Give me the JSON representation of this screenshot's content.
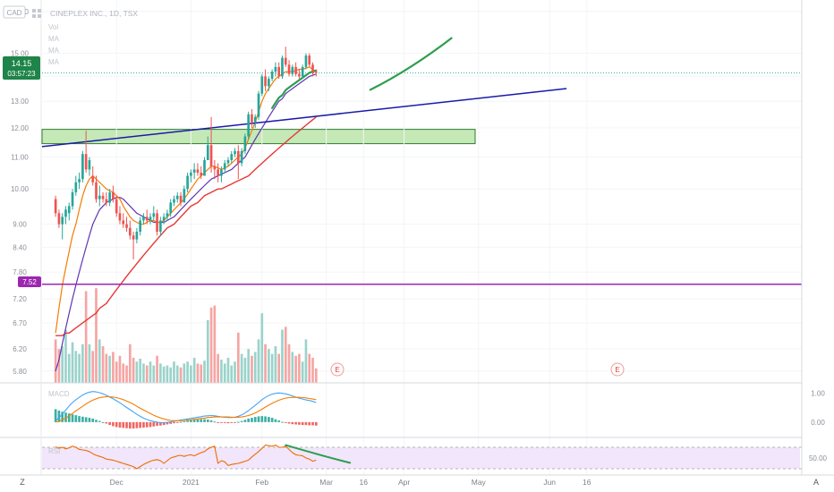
{
  "header": {
    "currency": "CAD",
    "symbol_title": "CINEPLEX INC., 1D, TSX",
    "indicator_labels": [
      "Vol",
      "MA",
      "MA",
      "MA"
    ]
  },
  "last_price": {
    "value": "14.15",
    "countdown": "03:57:23"
  },
  "level_label": "7.52",
  "price_axis_ticks": [
    "17.00",
    "15.00",
    "14.00",
    "13.00",
    "12.00",
    "11.00",
    "10.00",
    "9.00",
    "8.40",
    "7.80",
    "7.20",
    "6.70",
    "6.20",
    "5.80"
  ],
  "macd_axis_ticks": [
    "1.00",
    "0.00"
  ],
  "macd_label": "MACD",
  "rsi_axis_ticks": [
    "50.00"
  ],
  "rsi_label": "RSI",
  "time_axis_labels": [
    "Dec",
    "2021",
    "Feb",
    "Mar",
    "16",
    "Apr",
    "May",
    "Jun",
    "16"
  ],
  "earnings_marker": "E",
  "corner_left": "Z",
  "corner_right": "A",
  "colors": {
    "up": "#26a69a",
    "down": "#ef5350",
    "ma_fast": "#f57c00",
    "ma_mid": "#5e35b1",
    "ma_slow": "#e53935",
    "trend_line": "#1a1aa8",
    "support_line": "#9c27b0",
    "zone_fill": "#c5e8b7",
    "zone_border": "#2e7d32",
    "drawn_arrow": "#2e9e4f",
    "price_badge": "#1e8449",
    "macd_line": "#42a5f5",
    "signal_line": "#f57c00",
    "rsi_line": "#ef6c00",
    "rsi_band": "#f1e6fb"
  },
  "chart_data": {
    "type": "candlestick",
    "title": "CINEPLEX INC., 1D, TSX",
    "y_scale": "log",
    "ylim": [
      5.6,
      17.5
    ],
    "x_range": [
      -4,
      220
    ],
    "x_label_positions": [
      {
        "label": "Dec",
        "index": 18
      },
      {
        "label": "2021",
        "index": 40
      },
      {
        "label": "Feb",
        "index": 61
      },
      {
        "label": "Mar",
        "index": 80
      },
      {
        "label": "16",
        "index": 91
      },
      {
        "label": "Apr",
        "index": 103
      },
      {
        "label": "May",
        "index": 125
      },
      {
        "label": "Jun",
        "index": 146
      },
      {
        "label": "16",
        "index": 157
      }
    ],
    "ohlc": [
      [
        9.7,
        9.8,
        9.2,
        9.3
      ],
      [
        9.3,
        9.4,
        8.9,
        9.0
      ],
      [
        9.0,
        9.3,
        8.6,
        9.2
      ],
      [
        9.2,
        9.5,
        9.0,
        9.4
      ],
      [
        9.3,
        9.6,
        9.1,
        9.5
      ],
      [
        9.5,
        10.0,
        9.4,
        9.9
      ],
      [
        9.9,
        10.4,
        9.8,
        10.2
      ],
      [
        10.2,
        10.5,
        10.0,
        10.3
      ],
      [
        10.3,
        11.2,
        10.2,
        11.1
      ],
      [
        11.1,
        11.9,
        10.5,
        10.6
      ],
      [
        10.6,
        11.0,
        10.4,
        10.9
      ],
      [
        10.4,
        10.7,
        10.1,
        10.2
      ],
      [
        10.2,
        10.4,
        9.6,
        9.7
      ],
      [
        9.7,
        10.1,
        9.5,
        9.8
      ],
      [
        9.8,
        9.9,
        9.6,
        9.7
      ],
      [
        9.7,
        9.9,
        9.5,
        9.6
      ],
      [
        9.6,
        10.0,
        9.5,
        9.9
      ],
      [
        9.9,
        10.1,
        9.6,
        9.7
      ],
      [
        9.7,
        9.8,
        9.2,
        9.3
      ],
      [
        9.3,
        9.5,
        9.0,
        9.1
      ],
      [
        9.1,
        9.3,
        8.9,
        9.0
      ],
      [
        9.0,
        9.2,
        8.8,
        8.9
      ],
      [
        8.9,
        9.1,
        8.6,
        8.7
      ],
      [
        8.7,
        8.8,
        8.1,
        8.6
      ],
      [
        8.6,
        8.9,
        8.5,
        8.8
      ],
      [
        8.8,
        9.2,
        8.7,
        9.1
      ],
      [
        9.1,
        9.3,
        9.0,
        9.2
      ],
      [
        9.2,
        9.4,
        9.0,
        9.1
      ],
      [
        9.1,
        9.3,
        9.0,
        9.2
      ],
      [
        9.2,
        9.5,
        9.1,
        9.3
      ],
      [
        9.3,
        9.4,
        8.7,
        8.8
      ],
      [
        8.8,
        9.2,
        8.7,
        9.1
      ],
      [
        9.1,
        9.3,
        9.0,
        9.2
      ],
      [
        9.2,
        9.4,
        9.1,
        9.3
      ],
      [
        9.3,
        9.7,
        9.2,
        9.6
      ],
      [
        9.6,
        9.8,
        9.5,
        9.7
      ],
      [
        9.7,
        9.9,
        9.6,
        9.8
      ],
      [
        9.8,
        9.9,
        9.5,
        9.6
      ],
      [
        9.6,
        10.1,
        9.6,
        10.0
      ],
      [
        10.0,
        10.5,
        9.9,
        10.4
      ],
      [
        10.4,
        10.6,
        10.2,
        10.5
      ],
      [
        10.5,
        10.8,
        10.3,
        10.6
      ],
      [
        10.6,
        10.8,
        10.4,
        10.5
      ],
      [
        10.5,
        10.7,
        10.3,
        10.4
      ],
      [
        10.4,
        11.0,
        10.4,
        10.9
      ],
      [
        10.9,
        11.7,
        10.9,
        11.4
      ],
      [
        11.4,
        12.4,
        10.5,
        10.7
      ],
      [
        10.7,
        10.9,
        10.3,
        10.6
      ],
      [
        10.6,
        10.8,
        10.2,
        10.4
      ],
      [
        10.4,
        10.7,
        10.2,
        10.6
      ],
      [
        10.6,
        10.9,
        10.5,
        10.8
      ],
      [
        10.8,
        11.0,
        10.7,
        10.9
      ],
      [
        10.9,
        11.2,
        10.8,
        11.1
      ],
      [
        11.1,
        11.3,
        11.0,
        11.2
      ],
      [
        11.2,
        11.4,
        10.3,
        10.8
      ],
      [
        10.8,
        11.3,
        10.7,
        11.2
      ],
      [
        11.2,
        11.8,
        11.1,
        11.7
      ],
      [
        11.7,
        12.6,
        11.6,
        12.5
      ],
      [
        12.5,
        12.7,
        12.0,
        12.2
      ],
      [
        12.2,
        12.5,
        12.0,
        12.4
      ],
      [
        12.4,
        13.4,
        12.3,
        13.3
      ],
      [
        13.3,
        14.1,
        13.2,
        14.0
      ],
      [
        14.0,
        14.3,
        13.4,
        13.6
      ],
      [
        13.6,
        14.0,
        13.4,
        13.9
      ],
      [
        13.9,
        14.3,
        13.8,
        14.2
      ],
      [
        14.2,
        14.6,
        14.0,
        14.4
      ],
      [
        14.4,
        14.6,
        13.9,
        14.0
      ],
      [
        14.0,
        14.9,
        13.9,
        14.8
      ],
      [
        14.8,
        15.3,
        14.4,
        14.5
      ],
      [
        14.5,
        14.7,
        14.0,
        14.1
      ],
      [
        14.1,
        14.5,
        14.0,
        14.4
      ],
      [
        14.4,
        14.6,
        14.0,
        14.1
      ],
      [
        14.1,
        14.3,
        13.9,
        14.0
      ],
      [
        14.0,
        14.5,
        13.9,
        14.4
      ],
      [
        14.4,
        15.0,
        14.3,
        14.9
      ],
      [
        14.9,
        15.0,
        14.4,
        14.5
      ],
      [
        14.5,
        14.6,
        14.0,
        14.2
      ],
      [
        14.2,
        14.3,
        14.0,
        14.15
      ]
    ],
    "volume": [
      0.45,
      0.35,
      0.38,
      0.55,
      0.3,
      0.42,
      0.33,
      0.3,
      0.4,
      0.95,
      0.4,
      0.33,
      0.98,
      0.45,
      0.38,
      0.3,
      0.28,
      0.32,
      0.22,
      0.28,
      0.2,
      0.18,
      0.4,
      0.26,
      0.22,
      0.25,
      0.2,
      0.18,
      0.22,
      0.18,
      0.28,
      0.2,
      0.17,
      0.18,
      0.16,
      0.22,
      0.18,
      0.16,
      0.2,
      0.22,
      0.18,
      0.26,
      0.2,
      0.19,
      0.23,
      0.65,
      0.78,
      0.8,
      0.3,
      0.24,
      0.2,
      0.26,
      0.18,
      0.22,
      0.52,
      0.3,
      0.26,
      0.35,
      0.28,
      0.32,
      0.45,
      0.72,
      0.4,
      0.35,
      0.3,
      0.38,
      0.3,
      0.55,
      0.58,
      0.4,
      0.32,
      0.28,
      0.3,
      0.22,
      0.45,
      0.3,
      0.26,
      0.15
    ],
    "ma_fast": [
      6.5,
      7.0,
      7.5,
      7.9,
      8.3,
      8.7,
      9.0,
      9.4,
      9.8,
      10.1,
      10.3,
      10.4,
      10.3,
      10.2,
      10.1,
      10.0,
      9.95,
      9.9,
      9.8,
      9.7,
      9.5,
      9.35,
      9.2,
      9.1,
      9.05,
      9.0,
      9.0,
      9.05,
      9.1,
      9.1,
      9.05,
      9.05,
      9.1,
      9.2,
      9.3,
      9.4,
      9.5,
      9.6,
      9.7,
      9.85,
      10.0,
      10.15,
      10.3,
      10.4,
      10.5,
      10.6,
      10.7,
      10.7,
      10.65,
      10.6,
      10.65,
      10.7,
      10.8,
      10.9,
      11.0,
      11.1,
      11.3,
      11.6,
      11.9,
      12.2,
      12.6,
      13.0,
      13.3,
      13.5,
      13.7,
      13.9,
      14.0,
      14.1,
      14.2,
      14.2,
      14.2,
      14.25,
      14.3,
      14.3,
      14.35,
      14.4,
      14.3,
      14.2
    ],
    "ma_mid": [
      5.8,
      6.0,
      6.3,
      6.6,
      6.9,
      7.2,
      7.5,
      7.8,
      8.1,
      8.4,
      8.7,
      9.0,
      9.2,
      9.4,
      9.5,
      9.6,
      9.65,
      9.7,
      9.75,
      9.75,
      9.7,
      9.6,
      9.5,
      9.4,
      9.3,
      9.25,
      9.2,
      9.15,
      9.1,
      9.05,
      9.05,
      9.05,
      9.05,
      9.1,
      9.15,
      9.2,
      9.3,
      9.4,
      9.5,
      9.6,
      9.7,
      9.8,
      9.9,
      10.0,
      10.1,
      10.2,
      10.3,
      10.35,
      10.4,
      10.45,
      10.5,
      10.55,
      10.6,
      10.7,
      10.8,
      10.9,
      11.0,
      11.2,
      11.4,
      11.6,
      11.8,
      12.0,
      12.2,
      12.4,
      12.6,
      12.8,
      13.0,
      13.1,
      13.3,
      13.4,
      13.5,
      13.6,
      13.7,
      13.8,
      13.9,
      14.0,
      14.05,
      14.1
    ],
    "ma_slow": [
      6.45,
      6.45,
      6.45,
      6.5,
      6.5,
      6.55,
      6.6,
      6.65,
      6.7,
      6.75,
      6.8,
      6.85,
      6.9,
      7.0,
      7.05,
      7.1,
      7.2,
      7.3,
      7.4,
      7.5,
      7.6,
      7.7,
      7.8,
      7.9,
      8.0,
      8.1,
      8.2,
      8.3,
      8.4,
      8.5,
      8.6,
      8.7,
      8.8,
      8.9,
      8.95,
      9.0,
      9.1,
      9.2,
      9.3,
      9.4,
      9.5,
      9.55,
      9.6,
      9.7,
      9.8,
      9.85,
      9.9,
      9.95,
      10.0,
      10.0,
      10.05,
      10.1,
      10.15,
      10.2,
      10.25,
      10.3,
      10.35,
      10.4,
      10.5,
      10.6,
      10.7,
      10.8,
      10.9,
      11.0,
      11.1,
      11.2,
      11.3,
      11.4,
      11.5,
      11.6,
      11.7,
      11.8,
      11.9,
      12.0,
      12.1,
      12.2,
      12.3,
      12.4
    ],
    "horizontal_level": 7.52,
    "resistance_zone": {
      "from_index": -4,
      "to_index": 124,
      "low": 11.45,
      "high": 11.95
    },
    "trend_line": {
      "start": {
        "index": -4,
        "price": 11.35
      },
      "end": {
        "index": 151,
        "price": 13.5
      }
    },
    "drawn_projection": {
      "points": [
        {
          "index": 93,
          "price": 13.45
        },
        {
          "index": 105,
          "price": 14.3
        },
        {
          "index": 117,
          "price": 15.7
        }
      ]
    },
    "macd": {
      "ylim": [
        -0.5,
        1.3
      ],
      "macd": [
        0.05,
        0.15,
        0.28,
        0.42,
        0.56,
        0.68,
        0.78,
        0.86,
        0.94,
        1.0,
        1.04,
        1.06,
        1.05,
        1.02,
        0.98,
        0.93,
        0.87,
        0.81,
        0.74,
        0.67,
        0.59,
        0.51,
        0.43,
        0.35,
        0.27,
        0.2,
        0.14,
        0.09,
        0.05,
        0.02,
        0.0,
        -0.02,
        -0.02,
        -0.01,
        0.01,
        0.03,
        0.05,
        0.07,
        0.09,
        0.11,
        0.13,
        0.15,
        0.17,
        0.19,
        0.21,
        0.22,
        0.23,
        0.22,
        0.2,
        0.18,
        0.17,
        0.16,
        0.16,
        0.17,
        0.2,
        0.25,
        0.32,
        0.4,
        0.49,
        0.58,
        0.68,
        0.78,
        0.86,
        0.92,
        0.97,
        1.0,
        1.01,
        1.0,
        0.98,
        0.95,
        0.91,
        0.87,
        0.83,
        0.8,
        0.77,
        0.75,
        0.72,
        0.68
      ],
      "signal": [
        0.0,
        0.03,
        0.08,
        0.14,
        0.22,
        0.3,
        0.39,
        0.47,
        0.55,
        0.63,
        0.7,
        0.76,
        0.81,
        0.85,
        0.87,
        0.88,
        0.88,
        0.87,
        0.85,
        0.82,
        0.78,
        0.73,
        0.68,
        0.62,
        0.55,
        0.48,
        0.42,
        0.36,
        0.3,
        0.24,
        0.19,
        0.15,
        0.11,
        0.08,
        0.06,
        0.05,
        0.05,
        0.05,
        0.06,
        0.07,
        0.08,
        0.1,
        0.11,
        0.13,
        0.14,
        0.16,
        0.17,
        0.18,
        0.18,
        0.18,
        0.18,
        0.18,
        0.17,
        0.17,
        0.17,
        0.18,
        0.2,
        0.23,
        0.27,
        0.32,
        0.38,
        0.45,
        0.52,
        0.59,
        0.65,
        0.71,
        0.76,
        0.8,
        0.83,
        0.85,
        0.86,
        0.86,
        0.86,
        0.85,
        0.84,
        0.82,
        0.8,
        0.78
      ],
      "histogram": [
        0.45,
        0.4,
        0.36,
        0.33,
        0.3,
        0.27,
        0.24,
        0.21,
        0.19,
        0.17,
        0.15,
        0.12,
        0.08,
        0.04,
        0.0,
        -0.05,
        -0.1,
        -0.14,
        -0.17,
        -0.19,
        -0.2,
        -0.21,
        -0.22,
        -0.22,
        -0.21,
        -0.2,
        -0.19,
        -0.18,
        -0.17,
        -0.15,
        -0.13,
        -0.12,
        -0.1,
        -0.08,
        -0.06,
        -0.04,
        -0.02,
        0.01,
        0.03,
        0.05,
        0.07,
        0.08,
        0.09,
        0.1,
        0.1,
        0.09,
        0.06,
        0.02,
        -0.01,
        -0.02,
        -0.03,
        -0.04,
        -0.03,
        -0.02,
        0.01,
        0.04,
        0.08,
        0.12,
        0.15,
        0.18,
        0.2,
        0.21,
        0.2,
        0.18,
        0.15,
        0.1,
        0.06,
        0.01,
        -0.03,
        -0.05,
        -0.07,
        -0.08,
        -0.09,
        -0.1,
        -0.1,
        -0.11,
        -0.11,
        -0.12
      ]
    },
    "rsi": {
      "ylim": [
        20,
        85
      ],
      "band": [
        30,
        70
      ],
      "values": [
        71,
        68,
        70,
        67,
        69,
        72,
        70,
        66,
        65,
        64,
        62,
        58,
        55,
        53,
        51,
        48,
        47,
        46,
        44,
        42,
        40,
        38,
        36,
        34,
        30,
        34,
        38,
        41,
        44,
        46,
        47,
        45,
        40,
        45,
        50,
        52,
        54,
        55,
        53,
        55,
        56,
        54,
        57,
        60,
        62,
        67,
        70,
        72,
        40,
        45,
        43,
        36,
        38,
        39,
        40,
        42,
        44,
        46,
        52,
        57,
        62,
        68,
        74,
        73,
        72,
        74,
        70,
        70,
        72,
        66,
        60,
        56,
        55,
        54,
        50,
        48,
        44,
        46
      ]
    },
    "rsi_drawn_curve": {
      "points": [
        {
          "index": 68,
          "rsi": 74
        },
        {
          "index": 80,
          "rsi": 52
        },
        {
          "index": 87,
          "rsi": 41
        }
      ]
    }
  }
}
